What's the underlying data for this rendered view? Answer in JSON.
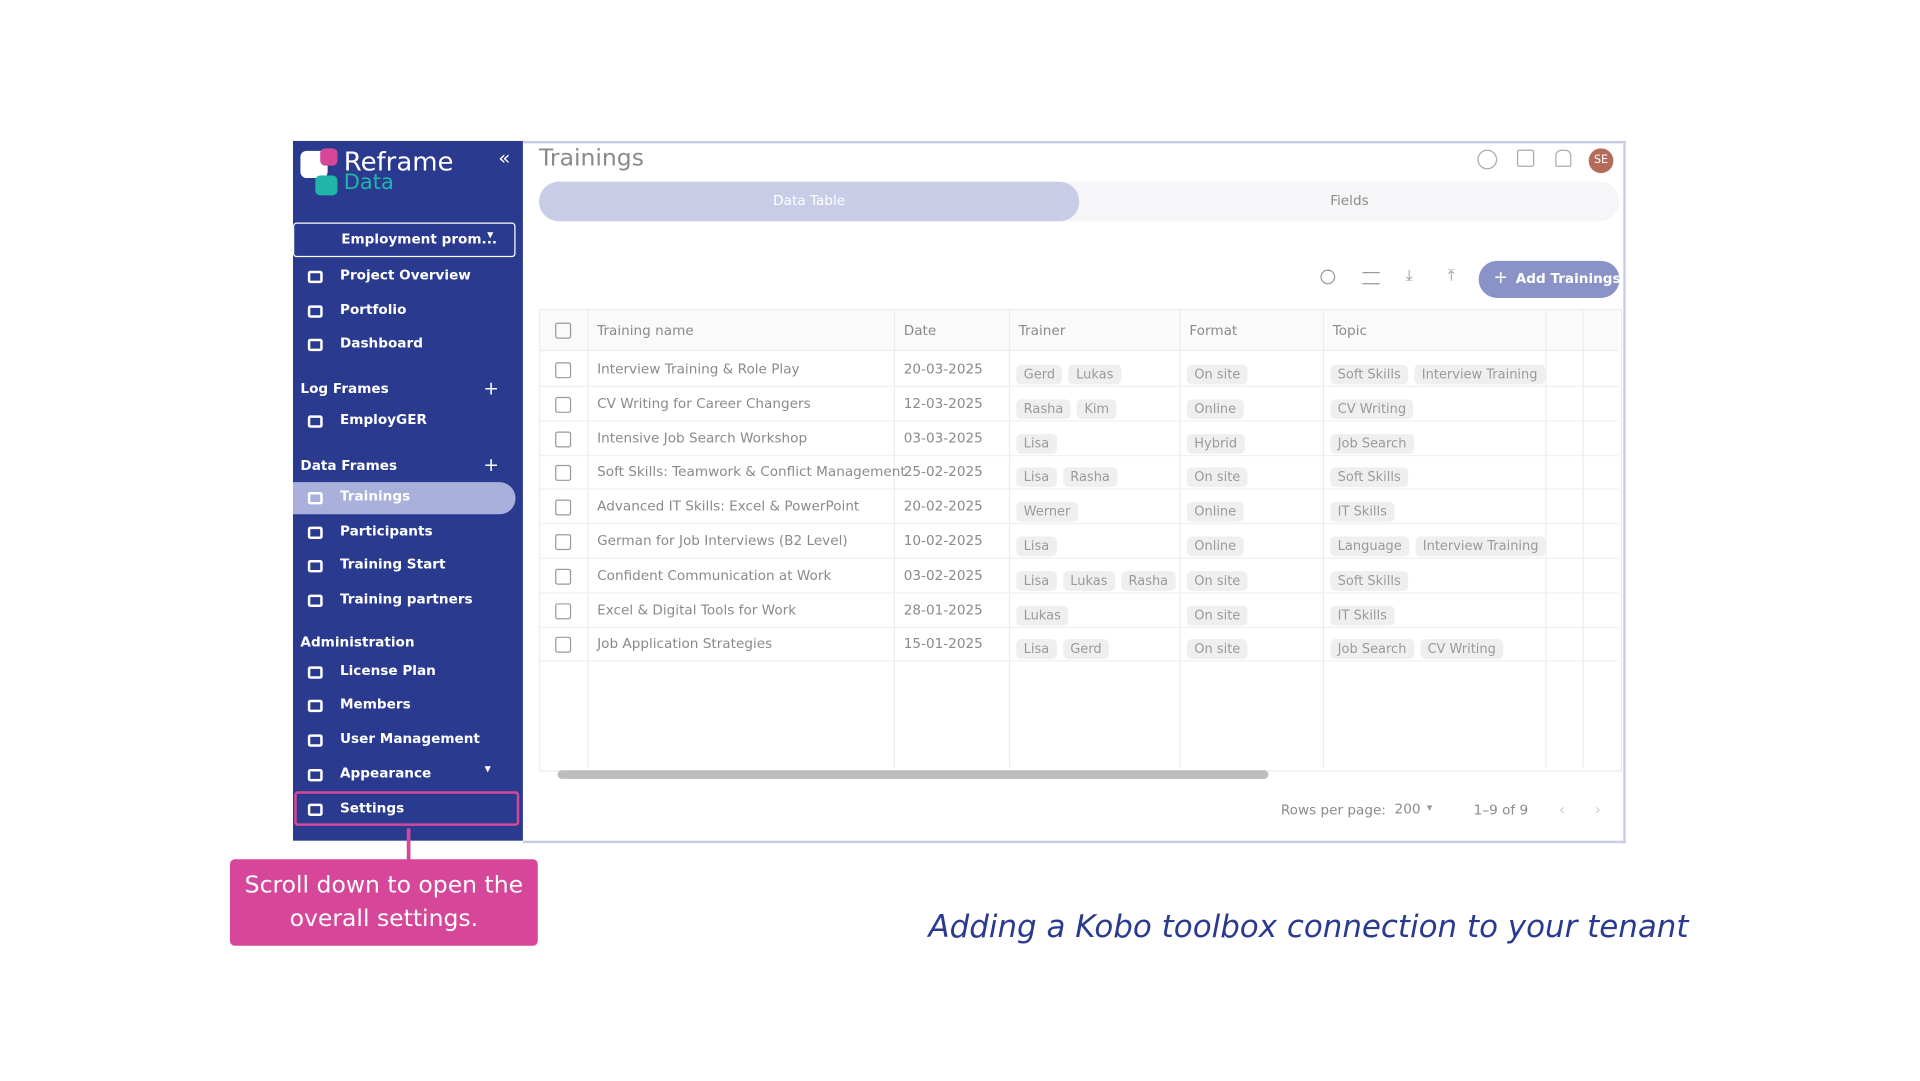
{
  "logo": {
    "line1": "Reframe",
    "line2": "Data"
  },
  "project": "Employment prom...",
  "sidebar": {
    "items_top": [
      "Project Overview",
      "Portfolio",
      "Dashboard"
    ],
    "sections": [
      {
        "title": "Log Frames",
        "items": [
          "EmployGER"
        ]
      },
      {
        "title": "Data Frames",
        "items": [
          "Trainings",
          "Participants",
          "Training Start",
          "Training partners"
        ]
      },
      {
        "title": "Administration",
        "items": [
          "License Plan",
          "Members",
          "User Management",
          "Appearance",
          "Settings"
        ]
      }
    ]
  },
  "header": {
    "title": "Trainings",
    "avatar": "SE"
  },
  "tabs": [
    "Data Table",
    "Fields"
  ],
  "toolbar": {
    "add_button": "Add Trainings"
  },
  "table": {
    "columns": [
      "Training name",
      "Date",
      "Trainer",
      "Format",
      "Topic"
    ],
    "rows": [
      [
        "Interview Training & Role Play",
        "20-03-2025",
        [
          "Gerd",
          "Lukas"
        ],
        "On site",
        [
          "Soft Skills",
          "Interview Training"
        ]
      ],
      [
        "CV Writing for Career Changers",
        "12-03-2025",
        [
          "Rasha",
          "Kim"
        ],
        "Online",
        [
          "CV Writing"
        ]
      ],
      [
        "Intensive Job Search Workshop",
        "03-03-2025",
        [
          "Lisa"
        ],
        "Hybrid",
        [
          "Job Search"
        ]
      ],
      [
        "Soft Skills: Teamwork & Conflict Management",
        "25-02-2025",
        [
          "Lisa",
          "Rasha"
        ],
        "On site",
        [
          "Soft Skills"
        ]
      ],
      [
        "Advanced IT Skills: Excel & PowerPoint",
        "20-02-2025",
        [
          "Werner"
        ],
        "Online",
        [
          "IT Skills"
        ]
      ],
      [
        "German for Job Interviews (B2 Level)",
        "10-02-2025",
        [
          "Lisa"
        ],
        "Online",
        [
          "Language",
          "Interview Training"
        ]
      ],
      [
        "Confident Communication at Work",
        "03-02-2025",
        [
          "Lisa",
          "Lukas",
          "Rasha"
        ],
        "On site",
        [
          "Soft Skills"
        ]
      ],
      [
        "Excel & Digital Tools for Work",
        "28-01-2025",
        [
          "Lukas"
        ],
        "On site",
        [
          "IT Skills"
        ]
      ],
      [
        "Job Application Strategies",
        "15-01-2025",
        [
          "Lisa",
          "Gerd"
        ],
        "On site",
        [
          "Job Search",
          "CV Writing"
        ]
      ]
    ]
  },
  "footer": {
    "rows_per_page_label": "Rows per page:",
    "rows_per_page": "200",
    "range": "1–9 of 9"
  },
  "callout": "Scroll down to open the overall settings.",
  "caption": "Adding a Kobo toolbox connection to your tenant"
}
